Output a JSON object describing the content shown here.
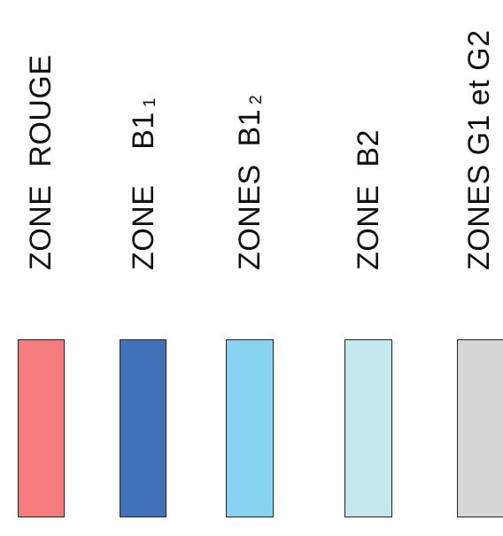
{
  "legend": {
    "items": [
      {
        "label": "ZONE  ROUGE",
        "sub": "",
        "color": "#f47c7c"
      },
      {
        "label": "ZONE    B1",
        "sub": "1",
        "color": "#3f72b8"
      },
      {
        "label": "ZONES  B1",
        "sub": "2",
        "color": "#87d3f1"
      },
      {
        "label": "ZONE  B2",
        "sub": "",
        "color": "#c5e8ef"
      },
      {
        "label": "ZONES G1 et G2",
        "sub": "",
        "color": "#d6d6d6"
      }
    ]
  }
}
